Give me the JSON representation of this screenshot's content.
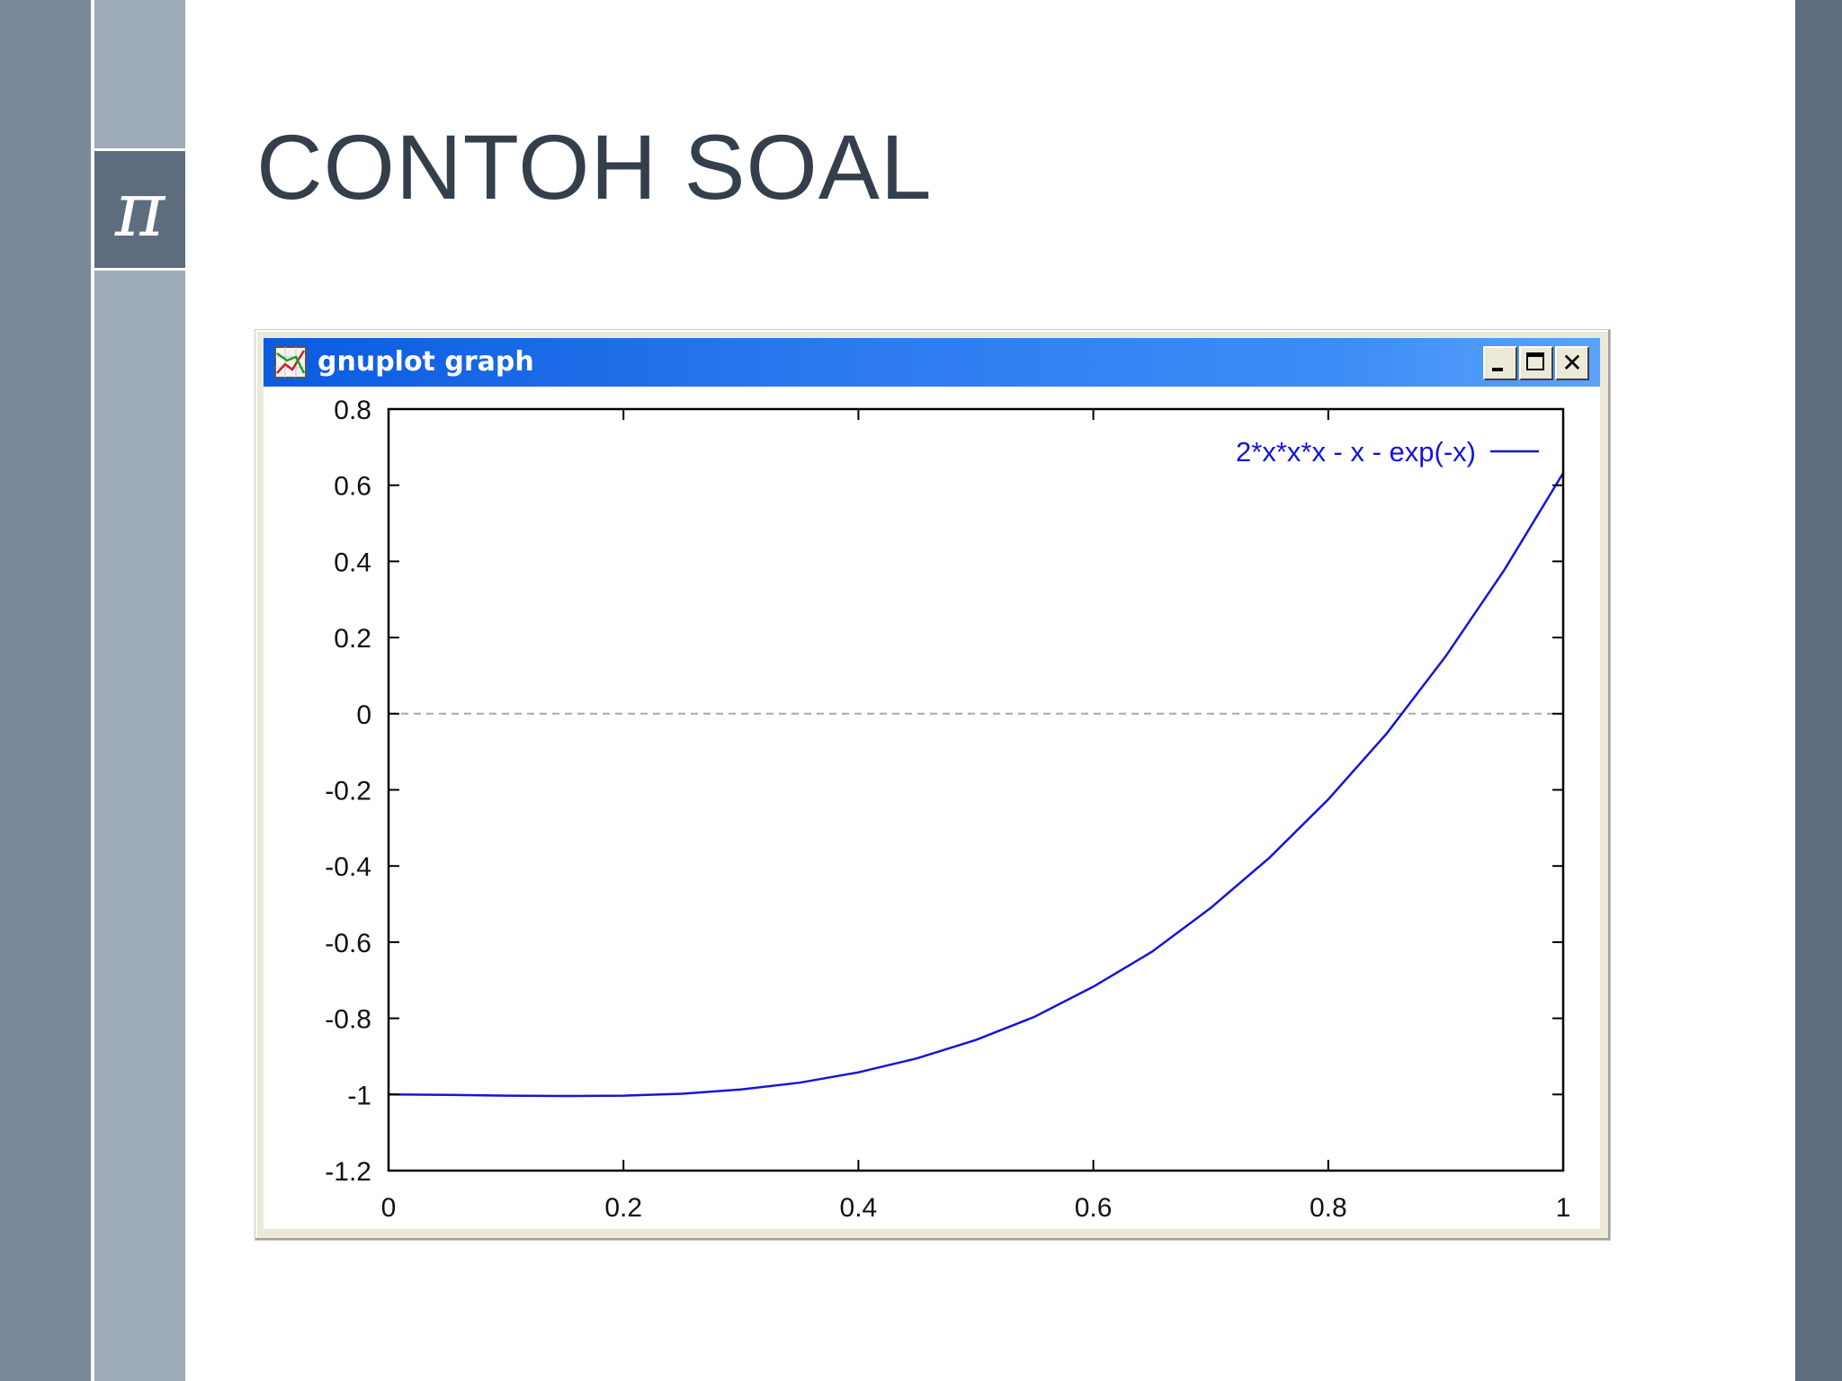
{
  "slide": {
    "title": "CONTOH SOAL",
    "symbol": "π"
  },
  "window": {
    "title": "gnuplot graph",
    "icon": "gnuplot-graph-icon",
    "controls": [
      "minimize",
      "maximize",
      "close"
    ],
    "close_glyph": "✕"
  },
  "colors": {
    "titlebar_start": "#0a5be0",
    "titlebar_end": "#5aa3f8",
    "curve": "#1515d6",
    "zero_line": "#a8a8a8",
    "band_dark": "#7a8a9b",
    "band_light": "#9eabb9",
    "band_right": "#5e6d7e",
    "title_text": "#343f4b"
  },
  "chart_data": {
    "type": "line",
    "title": "",
    "xlabel": "",
    "ylabel": "",
    "xlim": [
      0,
      1
    ],
    "ylim": [
      -1.2,
      0.8
    ],
    "xticks": [
      0,
      0.2,
      0.4,
      0.6,
      0.8,
      1
    ],
    "xtick_labels": [
      "0",
      "0.2",
      "0.4",
      "0.6",
      "0.8",
      "1"
    ],
    "yticks": [
      0.8,
      0.6,
      0.4,
      0.2,
      0,
      -0.2,
      -0.4,
      -0.6,
      -0.8,
      -1,
      -1.2
    ],
    "ytick_labels": [
      "0.8",
      "0.6",
      "0.4",
      "0.2",
      "0",
      "-0.2",
      "-0.4",
      "-0.6",
      "-0.8",
      "-1",
      "-1.2"
    ],
    "zero_line": "dashed",
    "grid": false,
    "legend_position": "top-right",
    "series": [
      {
        "name": "2*x*x*x - x - exp(-x)",
        "x": [
          0,
          0.05,
          0.1,
          0.15,
          0.2,
          0.25,
          0.3,
          0.35,
          0.4,
          0.45,
          0.5,
          0.55,
          0.6,
          0.65,
          0.7,
          0.75,
          0.8,
          0.85,
          0.9,
          0.95,
          1
        ],
        "y": [
          -1.0,
          -1.001,
          -1.003,
          -1.004,
          -1.003,
          -0.998,
          -0.987,
          -0.969,
          -0.942,
          -0.905,
          -0.857,
          -0.796,
          -0.717,
          -0.625,
          -0.51,
          -0.378,
          -0.225,
          -0.051,
          0.151,
          0.378,
          0.632
        ]
      }
    ]
  }
}
